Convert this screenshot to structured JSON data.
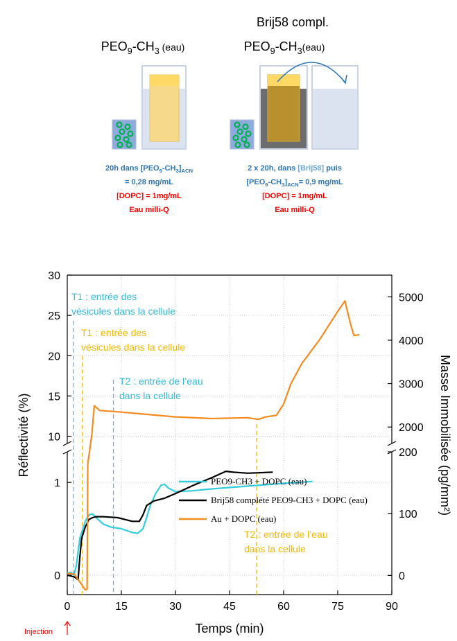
{
  "schematic": {
    "right_header": "Brij58 compl.",
    "left_title": [
      "PEO",
      "9",
      "-CH",
      "3",
      " (eau)"
    ],
    "right_title": [
      "PEO",
      "9",
      "-CH",
      "3",
      "(eau)"
    ],
    "left_caption": [
      [
        "20h dans [PEO",
        "9",
        "-CH",
        "3",
        "]",
        "ACN"
      ],
      "= 0,28 mg/mL",
      "[DOPC] = 1mg/mL",
      "Eau milli-Q"
    ],
    "right_caption": [
      [
        "2 x 20h, dans ",
        "[Brij58]",
        " puis"
      ],
      [
        "[PEO",
        "9",
        "-CH",
        "3",
        "]",
        "ACN",
        "= 0,9 mg/mL"
      ],
      "[DOPC] = 1mg/mL",
      "Eau milli-Q"
    ]
  },
  "chart_data": {
    "type": "line",
    "xlabel": "Temps (min)",
    "ylabel": "Réflectivité (%)",
    "y2label": "Masse Immobilisée (pg/mm²)",
    "injection_label": "Injection",
    "xlim": [
      0,
      90
    ],
    "xticks": [
      0,
      15,
      30,
      45,
      60,
      75,
      90
    ],
    "broken_y": true,
    "y_segments": [
      {
        "ylim": [
          -0.21,
          1.33
        ],
        "yticks": [
          0,
          1
        ],
        "y2lim": [
          -31,
          200
        ],
        "y2ticks": [
          0,
          100,
          200
        ]
      },
      {
        "ylim": [
          9.1,
          30
        ],
        "yticks": [
          10,
          15,
          20,
          25,
          30
        ],
        "y2lim": [
          1620,
          5500
        ],
        "y2ticks": [
          2000,
          3000,
          4000,
          5000
        ]
      }
    ],
    "grid": true,
    "series": [
      {
        "name": "PEO9-CH3 + DOPC (eau)",
        "color": "#33ccdd",
        "x": [
          0,
          1,
          1.8,
          2.5,
          3.5,
          5,
          6,
          7,
          8,
          10,
          12,
          15,
          18,
          19.5,
          21,
          22,
          23,
          24.5,
          26,
          27,
          28,
          30,
          35,
          40,
          50,
          60,
          68
        ],
        "values": [
          0.02,
          0.03,
          0,
          0.1,
          0.4,
          0.58,
          0.65,
          0.66,
          0.62,
          0.55,
          0.52,
          0.5,
          0.46,
          0.45,
          0.5,
          0.62,
          0.75,
          0.88,
          0.97,
          0.98,
          0.94,
          0.9,
          0.91,
          0.93,
          0.96,
          0.99,
          1.01
        ]
      },
      {
        "name": "Brij58 complété PEO9-CH3 + DOPC (eau)",
        "color": "#000000",
        "x": [
          0,
          2,
          3,
          3.5,
          4,
          5,
          6,
          7,
          8,
          10,
          14,
          18,
          20,
          21,
          22,
          24,
          27,
          30,
          35,
          40,
          44,
          46,
          50,
          57
        ],
        "values": [
          0,
          -0.02,
          -0.05,
          0.2,
          0.4,
          0.52,
          0.6,
          0.62,
          0.63,
          0.63,
          0.62,
          0.58,
          0.58,
          0.65,
          0.75,
          0.8,
          0.83,
          0.88,
          0.97,
          1.05,
          1.12,
          1.11,
          1.1,
          1.11
        ]
      },
      {
        "name": "Au + DOPC (eau)",
        "color": "#f58a1f",
        "x": [
          0,
          2,
          3,
          4,
          5,
          5.5,
          5.7,
          6.8,
          7.5,
          9,
          15,
          20,
          30,
          40,
          50,
          53,
          55,
          58,
          60,
          62,
          65,
          70,
          75,
          77,
          78.5,
          79.5,
          81
        ],
        "values": [
          0.02,
          0.01,
          -0.05,
          -0.1,
          -0.16,
          -0.15,
          1.2,
          10.2,
          13.8,
          13.2,
          13,
          12.8,
          12.4,
          12.2,
          12.3,
          12.1,
          12.4,
          12.6,
          14,
          16.5,
          19,
          22,
          25.5,
          26.8,
          24,
          22.5,
          22.6
        ]
      }
    ],
    "annotations": [
      {
        "text": [
          "T1 : entrée des",
          "vésicules dans la cellule"
        ],
        "x": 1.7,
        "color": "#33bbdd",
        "line_color": "#7fa7d9"
      },
      {
        "text": [
          "T1 : entrée des",
          "vésicules dans la cellule"
        ],
        "x": 4.2,
        "color": "#f5b800",
        "line_color": "#f5b800"
      },
      {
        "text": [
          "T2 : entrée de l’eau",
          "dans la cellule"
        ],
        "x": 12.8,
        "color": "#33bbdd",
        "line_color": "#7fa7d9"
      },
      {
        "text": [
          "T2 : entrée de l’eau",
          "dans la cellule"
        ],
        "x": 52.5,
        "color": "#f5b800",
        "line_color": "#f5b800"
      }
    ]
  }
}
